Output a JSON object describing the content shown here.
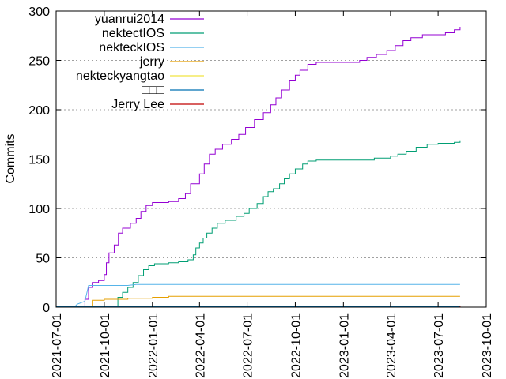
{
  "chart_data": {
    "type": "line",
    "ylabel": "Commits",
    "xlabel": "",
    "ylim": [
      0,
      300
    ],
    "xlim": [
      "2021-07-01",
      "2023-10-01"
    ],
    "y_ticks": [
      0,
      50,
      100,
      150,
      200,
      250,
      300
    ],
    "x_ticks": [
      "2021-07-01",
      "2021-10-01",
      "2022-01-01",
      "2022-04-01",
      "2022-07-01",
      "2022-10-01",
      "2023-01-01",
      "2023-04-01",
      "2023-07-01",
      "2023-10-01"
    ],
    "grid": "horizontal dotted",
    "legend_position": "top-left",
    "series": [
      {
        "name": "yuanrui2014",
        "color": "#9400d3",
        "step": true,
        "points": [
          [
            "2021-08-10",
            0
          ],
          [
            "2021-08-25",
            8
          ],
          [
            "2021-09-01",
            20
          ],
          [
            "2021-09-08",
            25
          ],
          [
            "2021-09-20",
            27
          ],
          [
            "2021-10-01",
            33
          ],
          [
            "2021-10-05",
            45
          ],
          [
            "2021-10-10",
            55
          ],
          [
            "2021-10-20",
            63
          ],
          [
            "2021-10-28",
            75
          ],
          [
            "2021-11-05",
            80
          ],
          [
            "2021-11-20",
            85
          ],
          [
            "2021-12-01",
            90
          ],
          [
            "2021-12-10",
            97
          ],
          [
            "2021-12-20",
            103
          ],
          [
            "2022-01-01",
            106
          ],
          [
            "2022-02-01",
            107
          ],
          [
            "2022-02-20",
            110
          ],
          [
            "2022-03-05",
            115
          ],
          [
            "2022-03-15",
            125
          ],
          [
            "2022-04-01",
            135
          ],
          [
            "2022-04-10",
            145
          ],
          [
            "2022-04-20",
            155
          ],
          [
            "2022-05-01",
            160
          ],
          [
            "2022-05-15",
            165
          ],
          [
            "2022-06-01",
            170
          ],
          [
            "2022-06-15",
            175
          ],
          [
            "2022-06-28",
            182
          ],
          [
            "2022-07-15",
            190
          ],
          [
            "2022-08-01",
            197
          ],
          [
            "2022-08-15",
            205
          ],
          [
            "2022-08-25",
            212
          ],
          [
            "2022-09-05",
            220
          ],
          [
            "2022-09-20",
            230
          ],
          [
            "2022-10-01",
            235
          ],
          [
            "2022-10-10",
            240
          ],
          [
            "2022-10-25",
            246
          ],
          [
            "2022-11-10",
            248
          ],
          [
            "2023-02-01",
            250
          ],
          [
            "2023-02-15",
            253
          ],
          [
            "2023-03-05",
            256
          ],
          [
            "2023-03-25",
            260
          ],
          [
            "2023-04-10",
            265
          ],
          [
            "2023-04-25",
            270
          ],
          [
            "2023-05-10",
            273
          ],
          [
            "2023-06-01",
            276
          ],
          [
            "2023-07-15",
            278
          ],
          [
            "2023-08-01",
            281
          ],
          [
            "2023-08-12",
            284
          ]
        ]
      },
      {
        "name": "nektectIOS",
        "color": "#009e73",
        "step": true,
        "points": [
          [
            "2021-10-20",
            0
          ],
          [
            "2021-10-27",
            10
          ],
          [
            "2021-11-05",
            15
          ],
          [
            "2021-11-15",
            20
          ],
          [
            "2021-11-25",
            25
          ],
          [
            "2021-12-05",
            32
          ],
          [
            "2021-12-15",
            38
          ],
          [
            "2021-12-25",
            42
          ],
          [
            "2022-01-05",
            44
          ],
          [
            "2022-02-01",
            45
          ],
          [
            "2022-02-20",
            46
          ],
          [
            "2022-03-10",
            48
          ],
          [
            "2022-03-20",
            53
          ],
          [
            "2022-03-25",
            60
          ],
          [
            "2022-04-01",
            65
          ],
          [
            "2022-04-08",
            70
          ],
          [
            "2022-04-15",
            75
          ],
          [
            "2022-04-25",
            80
          ],
          [
            "2022-05-05",
            85
          ],
          [
            "2022-05-20",
            88
          ],
          [
            "2022-06-10",
            92
          ],
          [
            "2022-06-25",
            95
          ],
          [
            "2022-07-05",
            100
          ],
          [
            "2022-07-20",
            105
          ],
          [
            "2022-08-01",
            112
          ],
          [
            "2022-08-10",
            117
          ],
          [
            "2022-08-20",
            120
          ],
          [
            "2022-09-01",
            125
          ],
          [
            "2022-09-10",
            130
          ],
          [
            "2022-09-20",
            135
          ],
          [
            "2022-10-01",
            140
          ],
          [
            "2022-10-15",
            145
          ],
          [
            "2022-10-25",
            148
          ],
          [
            "2022-11-10",
            149
          ],
          [
            "2023-01-01",
            149
          ],
          [
            "2023-03-01",
            151
          ],
          [
            "2023-04-01",
            153
          ],
          [
            "2023-04-15",
            155
          ],
          [
            "2023-05-01",
            158
          ],
          [
            "2023-05-20",
            162
          ],
          [
            "2023-06-10",
            165
          ],
          [
            "2023-07-01",
            166
          ],
          [
            "2023-08-01",
            167
          ],
          [
            "2023-08-12",
            169
          ]
        ]
      },
      {
        "name": "nekteckIOS",
        "color": "#56b4e9",
        "step": false,
        "points": [
          [
            "2021-08-05",
            0
          ],
          [
            "2021-08-10",
            3
          ],
          [
            "2021-08-25",
            6
          ],
          [
            "2021-09-01",
            22
          ],
          [
            "2021-10-01",
            22
          ],
          [
            "2021-11-15",
            22
          ],
          [
            "2021-12-01",
            23
          ],
          [
            "2023-08-12",
            23
          ]
        ]
      },
      {
        "name": "jerry",
        "color": "#e69f00",
        "step": true,
        "points": [
          [
            "2021-09-01",
            0
          ],
          [
            "2021-09-08",
            7
          ],
          [
            "2021-10-01",
            8
          ],
          [
            "2021-11-15",
            9
          ],
          [
            "2022-01-01",
            10
          ],
          [
            "2022-02-01",
            11
          ],
          [
            "2023-08-12",
            11
          ]
        ]
      },
      {
        "name": "nekteckyangtao",
        "color": "#f0e442",
        "step": true,
        "points": [
          [
            "2021-07-01",
            0
          ],
          [
            "2023-08-12",
            0
          ]
        ]
      },
      {
        "name": "□□□",
        "color": "#0072b2",
        "step": true,
        "points": [
          [
            "2021-07-01",
            0.5
          ],
          [
            "2023-08-12",
            0.5
          ]
        ]
      },
      {
        "name": "Jerry Lee",
        "color": "#c00000",
        "step": true,
        "points": [
          [
            "2022-10-01",
            0
          ],
          [
            "2023-08-12",
            1
          ]
        ]
      }
    ]
  }
}
